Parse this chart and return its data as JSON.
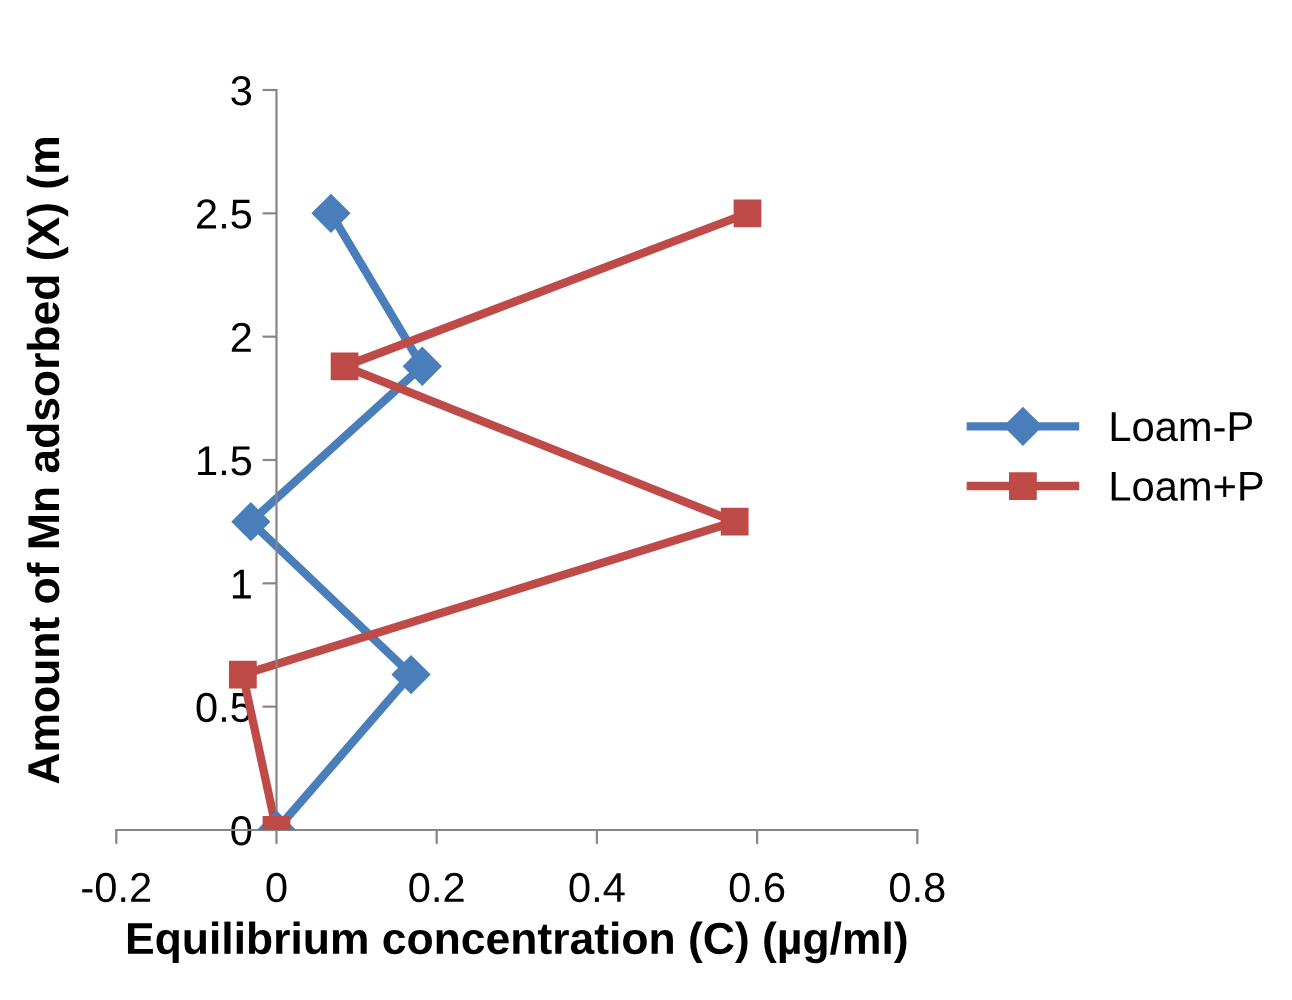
{
  "chart_data": {
    "type": "line",
    "xlabel": "Equilibrium concentration (C) (µg/ml)",
    "ylabel": "Amount of Mn adsorbed (X) (m",
    "xlim": [
      -0.2,
      0.8
    ],
    "xticks": [
      -0.2,
      0,
      0.2,
      0.4,
      0.6,
      0.8
    ],
    "ylim": [
      0,
      3
    ],
    "yticks": [
      0,
      0.5,
      1,
      1.5,
      2,
      2.5,
      3
    ],
    "grid": false,
    "legend": "right",
    "line_style": "solid",
    "series": [
      {
        "name": "Loam-P",
        "color": "#4a7ebb",
        "marker": "diamond",
        "x": [
          0,
          0.168,
          -0.032,
          0.182,
          0.068
        ],
        "values": [
          0,
          0.63,
          1.25,
          1.88,
          2.5
        ]
      },
      {
        "name": "Loam+P",
        "color": "#be4b48",
        "marker": "square",
        "x": [
          0,
          -0.042,
          0.572,
          0.085,
          0.588
        ],
        "values": [
          0,
          0.63,
          1.25,
          1.88,
          2.5
        ]
      }
    ]
  }
}
